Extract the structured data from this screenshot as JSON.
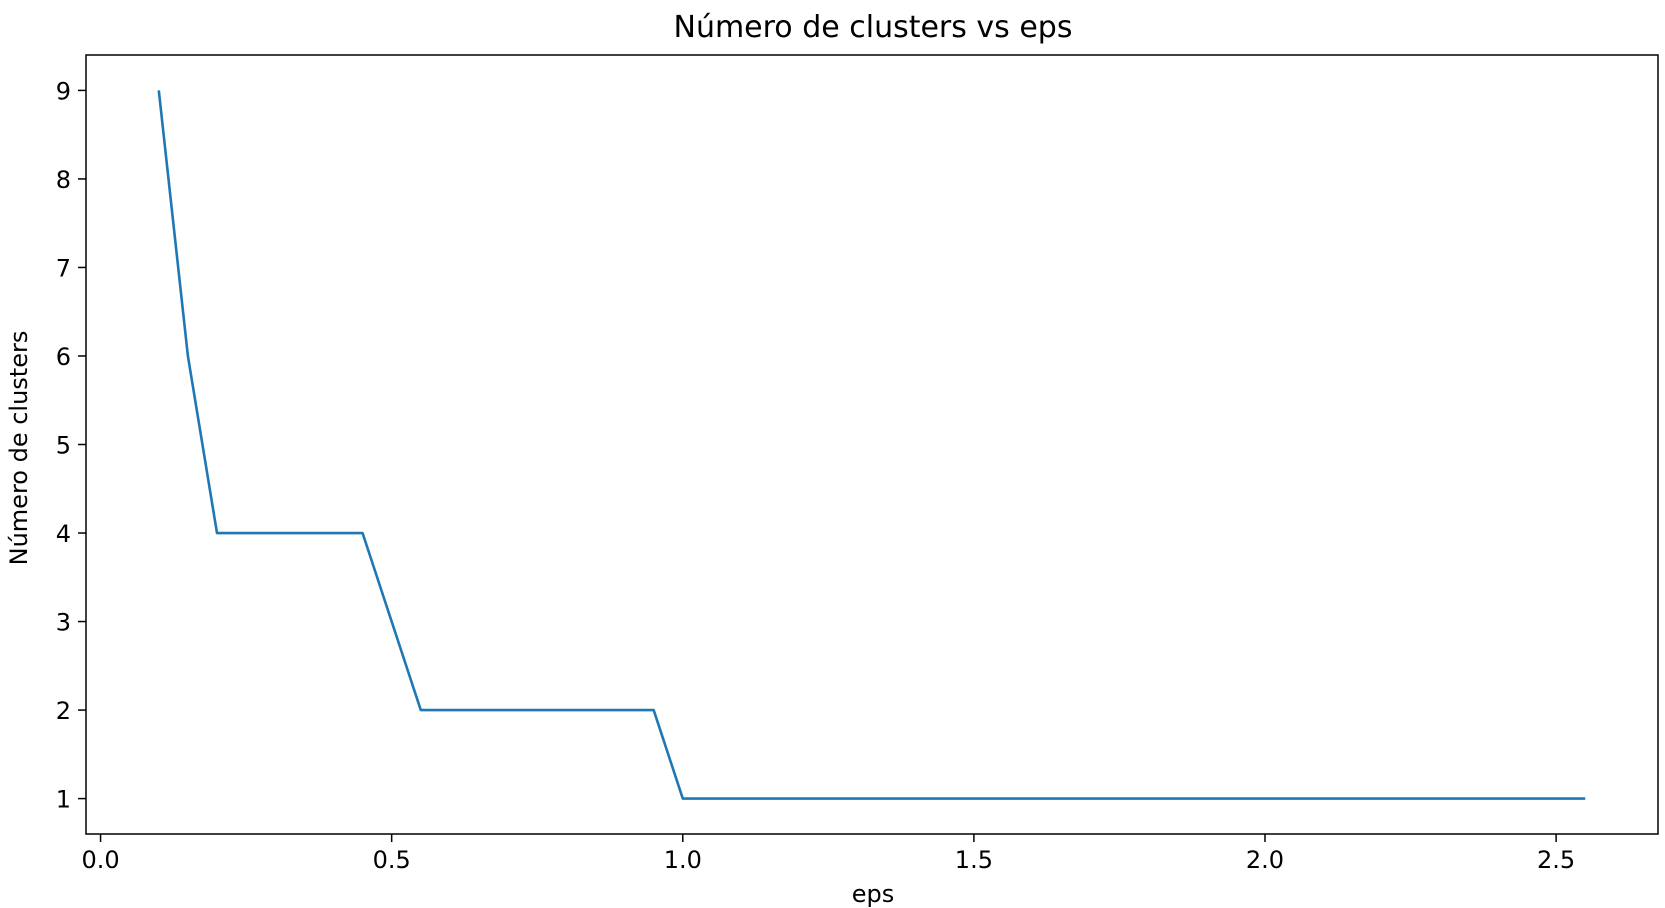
{
  "chart_data": {
    "type": "line",
    "title": "Número de clusters vs eps",
    "xlabel": "eps",
    "ylabel": "Número de clusters",
    "xlim": [
      -0.025,
      2.675
    ],
    "ylim": [
      0.6,
      9.4
    ],
    "xticks": [
      0.0,
      0.5,
      1.0,
      1.5,
      2.0,
      2.5
    ],
    "xtick_labels": [
      "0.0",
      "0.5",
      "1.0",
      "1.5",
      "2.0",
      "2.5"
    ],
    "yticks": [
      1,
      2,
      3,
      4,
      5,
      6,
      7,
      8,
      9
    ],
    "ytick_labels": [
      "1",
      "2",
      "3",
      "4",
      "5",
      "6",
      "7",
      "8",
      "9"
    ],
    "grid": false,
    "legend": "none",
    "line_color": "#1f77b4",
    "series": [
      {
        "x": [
          0.1,
          0.15,
          0.2,
          0.25,
          0.3,
          0.35,
          0.4,
          0.45,
          0.5,
          0.55,
          0.6,
          0.65,
          0.7,
          0.75,
          0.8,
          0.85,
          0.9,
          0.95,
          1.0,
          1.05,
          1.1,
          1.15,
          1.2,
          1.25,
          1.3,
          1.35,
          1.4,
          1.45,
          1.5,
          1.55,
          1.6,
          1.65,
          1.7,
          1.75,
          1.8,
          1.85,
          1.9,
          1.95,
          2.0,
          2.05,
          2.1,
          2.15,
          2.2,
          2.25,
          2.3,
          2.35,
          2.4,
          2.45,
          2.5,
          2.55
        ],
        "values": [
          9,
          6,
          4,
          4,
          4,
          4,
          4,
          4,
          3,
          2,
          2,
          2,
          2,
          2,
          2,
          2,
          2,
          2,
          1,
          1,
          1,
          1,
          1,
          1,
          1,
          1,
          1,
          1,
          1,
          1,
          1,
          1,
          1,
          1,
          1,
          1,
          1,
          1,
          1,
          1,
          1,
          1,
          1,
          1,
          1,
          1,
          1,
          1,
          1,
          1
        ]
      }
    ]
  }
}
